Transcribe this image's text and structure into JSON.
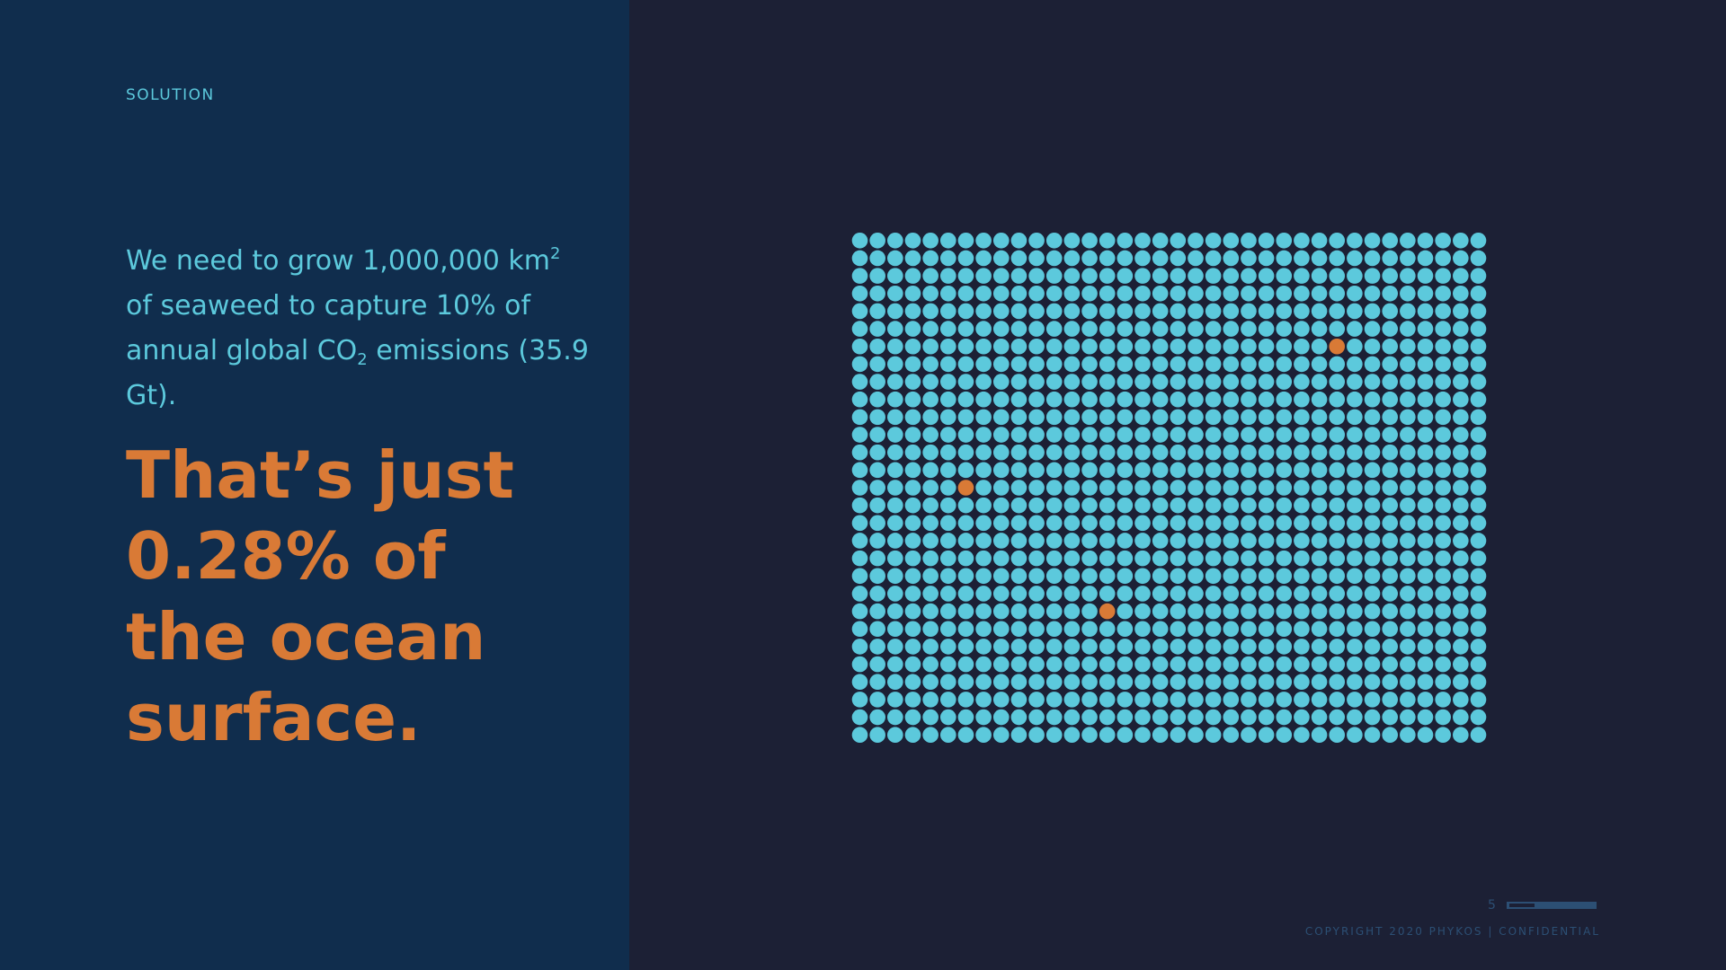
{
  "slide": {
    "section_label": "SOLUTION",
    "statement": {
      "part1": "We need to grow 1,000,000 km",
      "sup": "2",
      "part2": " of seaweed to capture 10% of annual global CO",
      "sub": "2",
      "part3": " emissions (35.9 Gt)."
    },
    "headline_lines": [
      "That’s just",
      "0.28% of",
      "the ocean",
      "surface."
    ],
    "page_number": "5",
    "page_progress": 0.3,
    "copyright": "COPYRIGHT 2020 PHYKOS | CONFIDENTIAL"
  },
  "dot_grid": {
    "columns": 36,
    "rows": 29,
    "dot_color": "#5cc9dc",
    "highlight_color": "#d97a36",
    "highlighted": [
      {
        "row": 6,
        "col": 27
      },
      {
        "row": 14,
        "col": 6
      },
      {
        "row": 21,
        "col": 14
      }
    ]
  },
  "colors": {
    "left_panel": "#102d4d",
    "right_panel": "#1c2035",
    "accent_cyan": "#5cc9dc",
    "accent_orange": "#d97a36"
  }
}
